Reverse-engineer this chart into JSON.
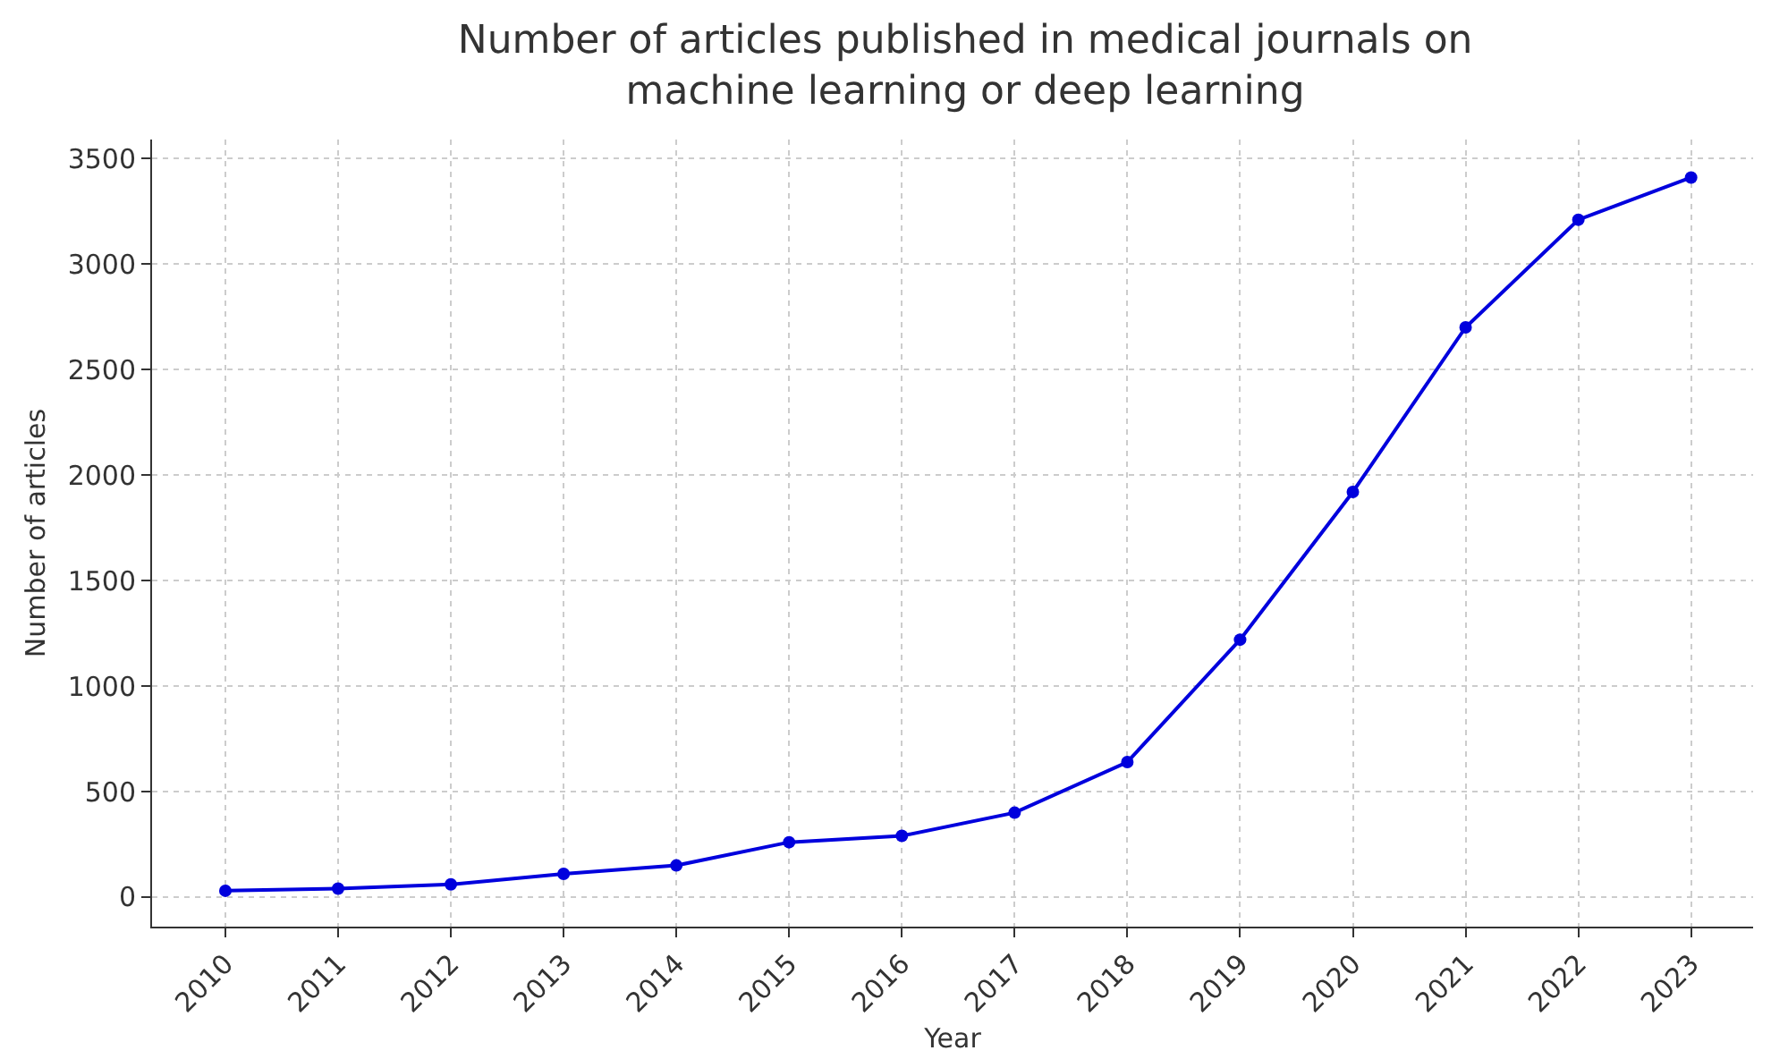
{
  "chart_data": {
    "type": "line",
    "title": "Number of articles published in medical journals on\nmachine learning or deep learning",
    "xlabel": "Year",
    "ylabel": "Number of articles",
    "categories": [
      "2010",
      "2011",
      "2012",
      "2013",
      "2014",
      "2015",
      "2016",
      "2017",
      "2018",
      "2019",
      "2020",
      "2021",
      "2022",
      "2023"
    ],
    "series": [
      {
        "color": "#0000dd",
        "values": [
          30,
          40,
          60,
          110,
          150,
          260,
          290,
          400,
          640,
          1220,
          1920,
          2700,
          3210,
          3410
        ]
      }
    ],
    "ylim": [
      -140,
      3590
    ],
    "yticks": [
      0,
      500,
      1000,
      1500,
      2000,
      2500,
      3000,
      3500
    ],
    "grid": true,
    "marker": "circle",
    "line_style": "solid"
  }
}
